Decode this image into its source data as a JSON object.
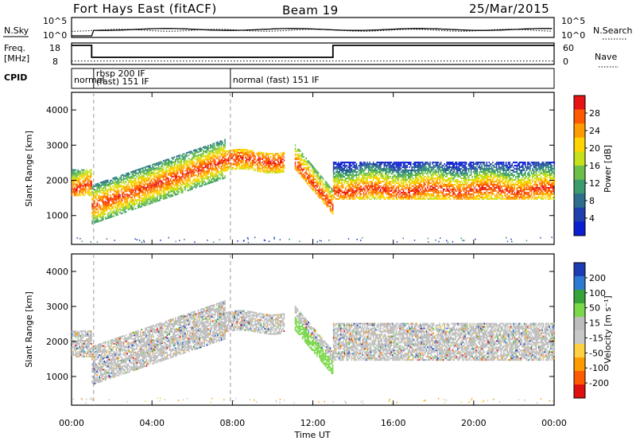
{
  "header": {
    "station": "Fort Hays East (fitACF)",
    "beam": "Beam 19",
    "date": "25/Mar/2015"
  },
  "top_panels": {
    "nsky_label": "N.Sky",
    "nsky_ticks": [
      "10^5",
      "10^0"
    ],
    "nsearch_label": "N.Search",
    "nsearch_ticks": [
      "10^5",
      "10^0"
    ],
    "freq_label_1": "Freq.",
    "freq_label_2": "[MHz]",
    "freq_ticks": [
      "18",
      "8"
    ],
    "nave_label": "Nave",
    "nave_ticks": [
      "60",
      "0"
    ],
    "cpid_label": "CPID",
    "cpid_segments": [
      {
        "text": "normal",
        "start": 0.0,
        "end": 1.1
      },
      {
        "text": "rbsp 200 IF",
        "start": 1.1,
        "end": 7.9,
        "line2": "(fast) 151 IF"
      },
      {
        "text": "normal (fast) 151 IF",
        "start": 7.9,
        "end": 24.0
      }
    ],
    "freq_series": {
      "x": [
        0.0,
        1.0,
        1.0,
        13.0,
        13.0,
        24.0
      ],
      "y": [
        18.0,
        18.0,
        10.5,
        10.5,
        18.0,
        18.0
      ]
    },
    "nave_level": 11
  },
  "colorbars": {
    "power": {
      "label": "Power [dB]",
      "ticks": [
        "28",
        "24",
        "20",
        "16",
        "12",
        "8",
        "4"
      ],
      "colors": [
        "#e81414",
        "#ff5a00",
        "#ff9c00",
        "#ffd400",
        "#c6e01a",
        "#6cc04a",
        "#3d9c6e",
        "#2e6f8e",
        "#1f3fae",
        "#0a1ed2"
      ]
    },
    "velocity": {
      "label": "Velocity [m s⁻¹]",
      "ticks": [
        "200",
        "100",
        "50",
        "15",
        "-15",
        "-50",
        "-100",
        "-200"
      ],
      "colors": [
        "#1c3cb4",
        "#2e7ad2",
        "#3aa23a",
        "#7ad84a",
        "#bdbdbd",
        "#c8c8c8",
        "#ffd040",
        "#ff9b00",
        "#ff5a00",
        "#e01010"
      ]
    }
  },
  "chart_data": {
    "type": "heatmap",
    "ylabel": "Slant Range [km]",
    "xlabel": "Time UT",
    "xlim": [
      0,
      24
    ],
    "ylim": [
      180,
      4500
    ],
    "xticks": [
      "00:00",
      "04:00",
      "08:00",
      "12:00",
      "16:00",
      "20:00",
      "00:00"
    ],
    "yticks": [
      "1000",
      "2000",
      "3000",
      "4000"
    ],
    "cpid_change_times": [
      1.1,
      7.9
    ],
    "echo_bands": [
      {
        "t0": 0.0,
        "t1": 1.0,
        "r_low": 1550,
        "r_high": 2300,
        "core": 1800
      },
      {
        "t0": 1.0,
        "t1": 7.6,
        "r_low": 1000,
        "r_high": 3100,
        "core": 1900
      },
      {
        "t0": 7.6,
        "t1": 10.6,
        "r_low": 2300,
        "r_high": 3100,
        "core": 2600
      },
      {
        "t0": 11.1,
        "t1": 13.0,
        "r_low": 1200,
        "r_high": 2800,
        "core": 1700
      },
      {
        "t0": 13.0,
        "t1": 24.0,
        "r_low": 1450,
        "r_high": 2500,
        "core": 1750
      }
    ]
  }
}
